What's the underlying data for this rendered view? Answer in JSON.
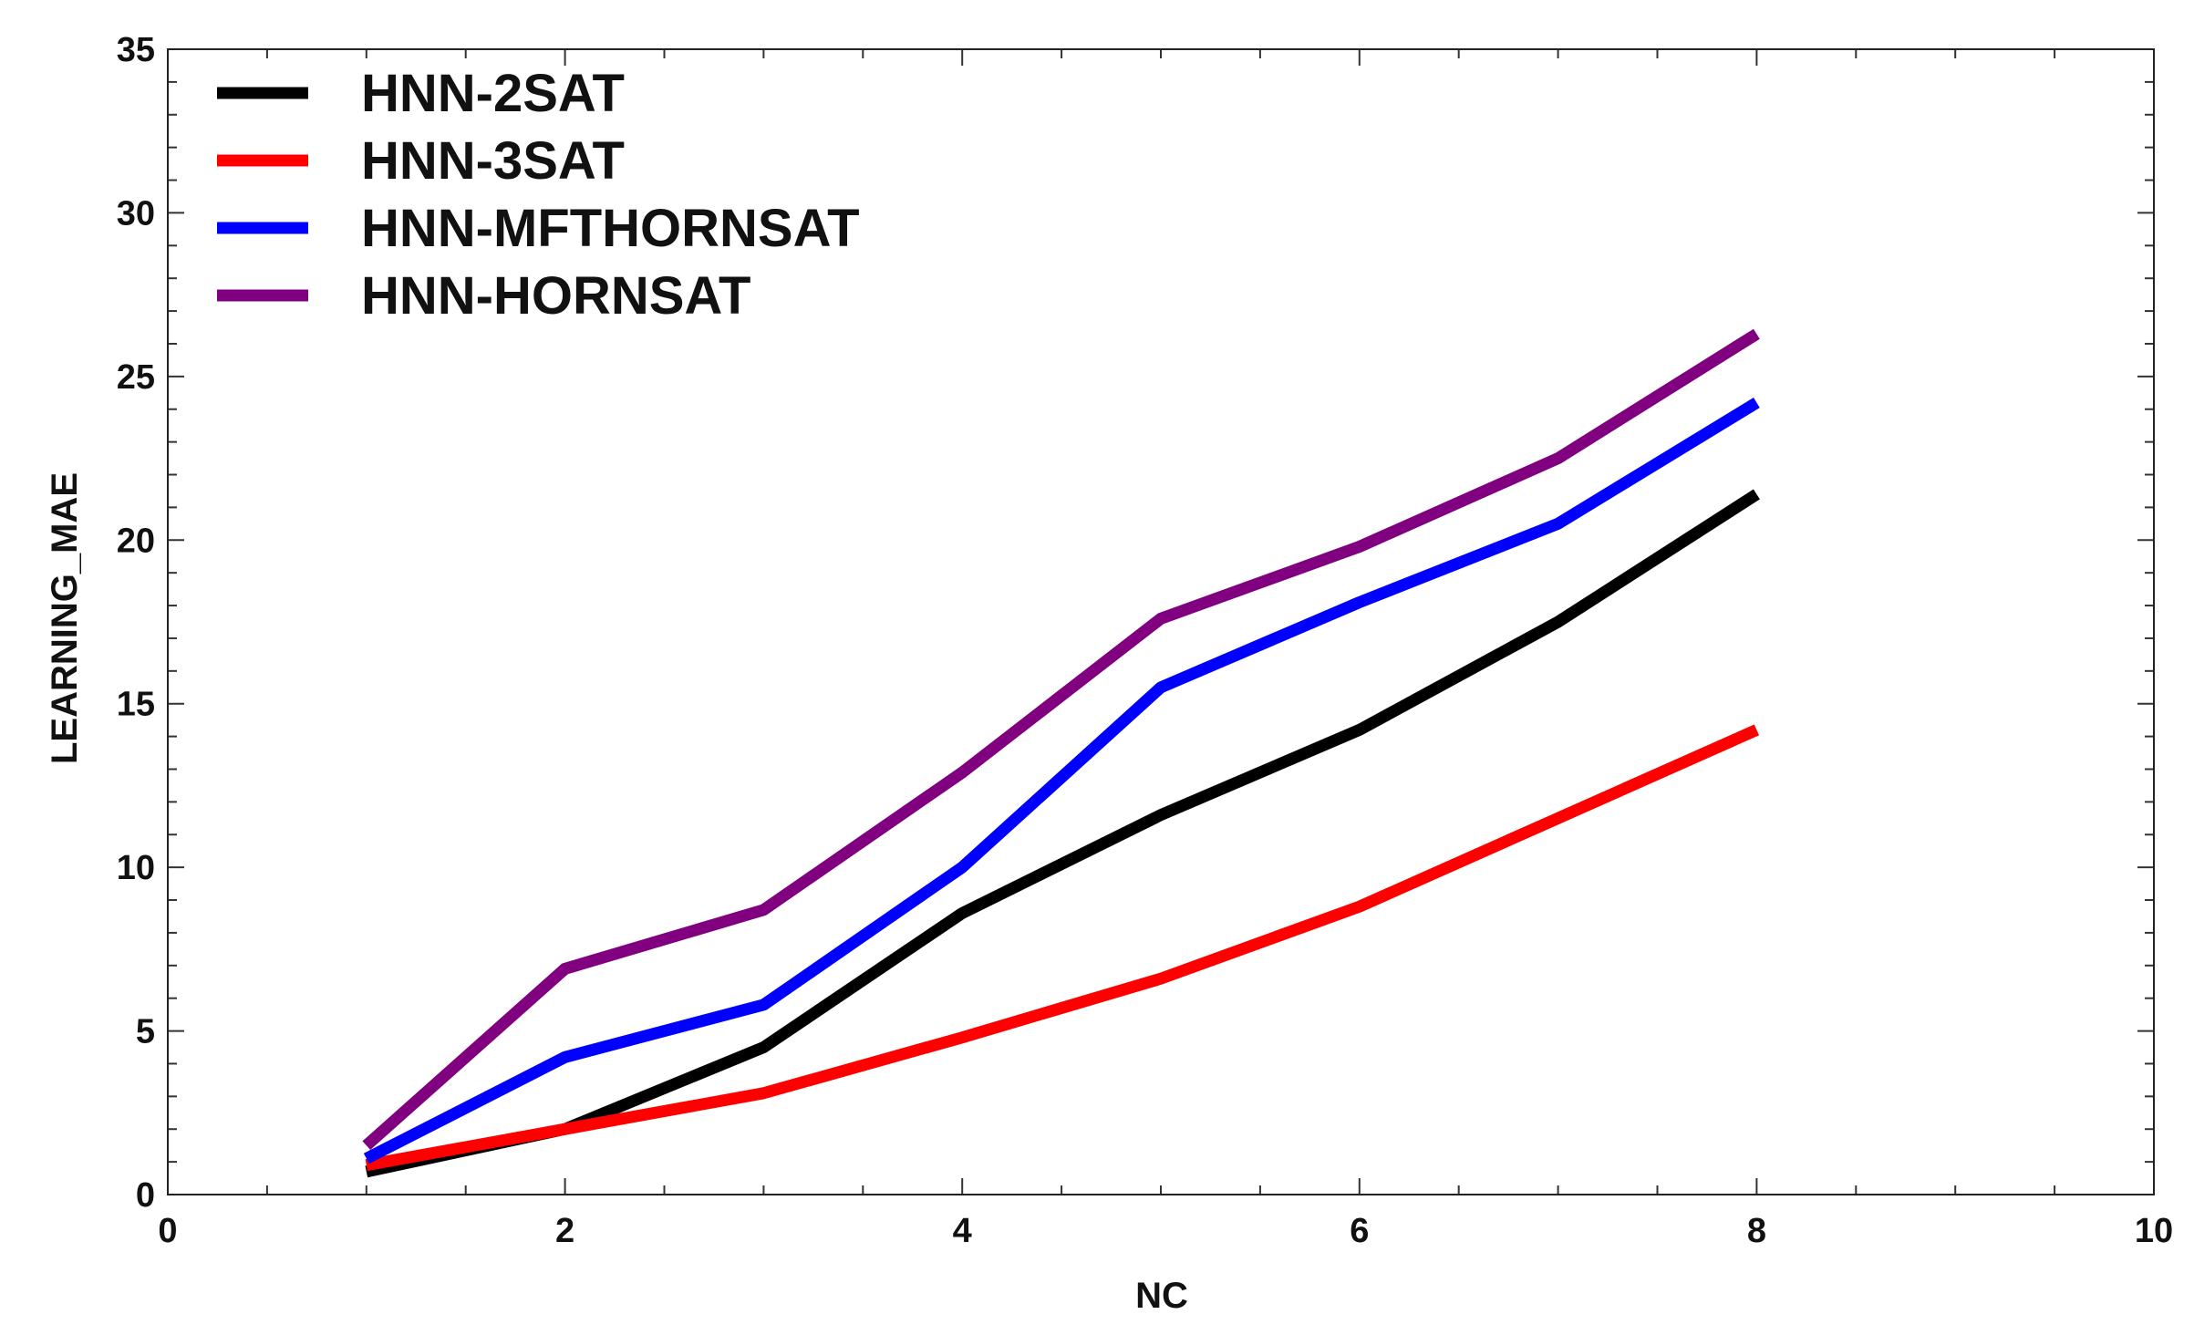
{
  "chart_data": {
    "type": "line",
    "title": "",
    "xlabel": "NC",
    "ylabel": "LEARNING_MAE",
    "xlim": [
      0,
      10
    ],
    "ylim": [
      0,
      35
    ],
    "xticks": [
      0,
      2,
      4,
      6,
      8,
      10
    ],
    "yticks": [
      0,
      5,
      10,
      15,
      20,
      25,
      30,
      35
    ],
    "grid": false,
    "legend_position": "top-left",
    "x": [
      1,
      2,
      3,
      4,
      5,
      6,
      7,
      8
    ],
    "series": [
      {
        "name": "HNN-2SAT",
        "color": "#000000",
        "values": [
          0.7,
          2.0,
          4.5,
          8.6,
          11.6,
          14.2,
          17.5,
          21.4
        ]
      },
      {
        "name": "HNN-3SAT",
        "color": "#ff0000",
        "values": [
          0.9,
          2.0,
          3.1,
          4.8,
          6.6,
          8.8,
          11.5,
          14.2
        ]
      },
      {
        "name": "HNN-MFTHORNSAT",
        "color": "#0000ff",
        "values": [
          1.1,
          4.2,
          5.8,
          10.0,
          15.5,
          18.1,
          20.5,
          24.2
        ]
      },
      {
        "name": "HNN-HORNSAT",
        "color": "#800080",
        "values": [
          1.5,
          6.9,
          8.7,
          12.9,
          17.6,
          19.8,
          22.5,
          26.3
        ]
      }
    ]
  }
}
